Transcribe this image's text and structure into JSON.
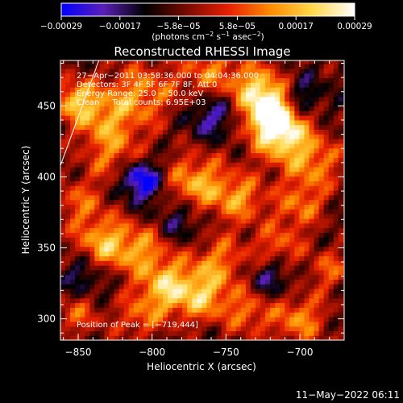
{
  "chart_data": {
    "type": "heatmap",
    "title": "Reconstructed RHESSI Image",
    "colorbar": {
      "ticks": [
        "−0.00029",
        "−0.00017",
        "−5.8e−05",
        "5.8e−05",
        "0.00017",
        "0.00029"
      ],
      "range": [
        -0.00029,
        0.00029
      ],
      "unit_prefix": "(photons cm",
      "unit_exp1": "−2",
      "unit_mid": " s",
      "unit_exp2": "−1",
      "unit_mid2": " asec",
      "unit_exp3": "−2",
      "unit_suffix": ")",
      "colormap": [
        "#0000ff",
        "#5a1fb8",
        "#000000",
        "#7a0a00",
        "#e82000",
        "#ff8c00",
        "#ffd84a",
        "#ffffff"
      ]
    },
    "xlabel": "Heliocentric X (arcsec)",
    "ylabel": "Heliocentric Y (arcsec)",
    "xlim": [
      -862,
      -670
    ],
    "ylim": [
      285,
      482
    ],
    "xticks": [
      -850,
      -800,
      -750,
      -700
    ],
    "xtick_labels": [
      "−850",
      "−800",
      "−750",
      "−700"
    ],
    "yticks": [
      300,
      350,
      400,
      450
    ],
    "ytick_labels": [
      "300",
      "350",
      "400",
      "450"
    ],
    "annotations": [
      "27−Apr−2011 03:58:36.000 to 04:04:36.000",
      "Detectors: 3F 4F 5F 6F 7F 8F, Att 0",
      "Energy Range: 25.0 − 50.0 keV",
      "Clean     Total counts: 6.95E+03"
    ],
    "peak_label": "Position of Peak = [−719,444]",
    "peak": [
      -719,
      444
    ],
    "limb_line": [
      [
        -862,
        408
      ],
      [
        -836,
        482
      ]
    ],
    "bright_regions": [
      {
        "x": -719,
        "y": 444,
        "v": 1.0,
        "r": 12
      },
      {
        "x": -712,
        "y": 430,
        "v": 0.85,
        "r": 14
      },
      {
        "x": -727,
        "y": 462,
        "v": 0.75,
        "r": 12
      },
      {
        "x": -760,
        "y": 472,
        "v": 0.55,
        "r": 16
      },
      {
        "x": -808,
        "y": 458,
        "v": 0.6,
        "r": 16
      },
      {
        "x": -835,
        "y": 442,
        "v": 0.55,
        "r": 14
      },
      {
        "x": -853,
        "y": 455,
        "v": 0.7,
        "r": 10
      },
      {
        "x": -825,
        "y": 415,
        "v": 0.5,
        "r": 14
      },
      {
        "x": -770,
        "y": 395,
        "v": 0.75,
        "r": 15
      },
      {
        "x": -740,
        "y": 385,
        "v": 0.6,
        "r": 12
      },
      {
        "x": -690,
        "y": 410,
        "v": 0.55,
        "r": 14
      },
      {
        "x": -700,
        "y": 380,
        "v": 0.5,
        "r": 12
      },
      {
        "x": -850,
        "y": 382,
        "v": 0.45,
        "r": 12
      },
      {
        "x": -832,
        "y": 352,
        "v": 0.8,
        "r": 14
      },
      {
        "x": -805,
        "y": 350,
        "v": 0.5,
        "r": 12
      },
      {
        "x": -755,
        "y": 340,
        "v": 0.55,
        "r": 14
      },
      {
        "x": -715,
        "y": 350,
        "v": 0.5,
        "r": 12
      },
      {
        "x": -680,
        "y": 335,
        "v": 0.45,
        "r": 10
      },
      {
        "x": -790,
        "y": 322,
        "v": 0.85,
        "r": 14
      },
      {
        "x": -765,
        "y": 315,
        "v": 0.6,
        "r": 12
      },
      {
        "x": -735,
        "y": 305,
        "v": 0.5,
        "r": 12
      },
      {
        "x": -700,
        "y": 300,
        "v": 0.6,
        "r": 13
      },
      {
        "x": -850,
        "y": 305,
        "v": 0.45,
        "r": 12
      },
      {
        "x": -810,
        "y": 300,
        "v": 0.4,
        "r": 11
      }
    ],
    "dark_regions": [
      {
        "x": -808,
        "y": 398,
        "v": -0.9,
        "r": 10
      },
      {
        "x": -760,
        "y": 445,
        "v": -0.55,
        "r": 12
      },
      {
        "x": -845,
        "y": 330,
        "v": -0.45,
        "r": 12
      },
      {
        "x": -700,
        "y": 455,
        "v": -0.5,
        "r": 10
      },
      {
        "x": -720,
        "y": 330,
        "v": -0.45,
        "r": 11
      },
      {
        "x": -780,
        "y": 370,
        "v": -0.4,
        "r": 12
      }
    ]
  },
  "timestamp": "11−May−2022 06:11"
}
